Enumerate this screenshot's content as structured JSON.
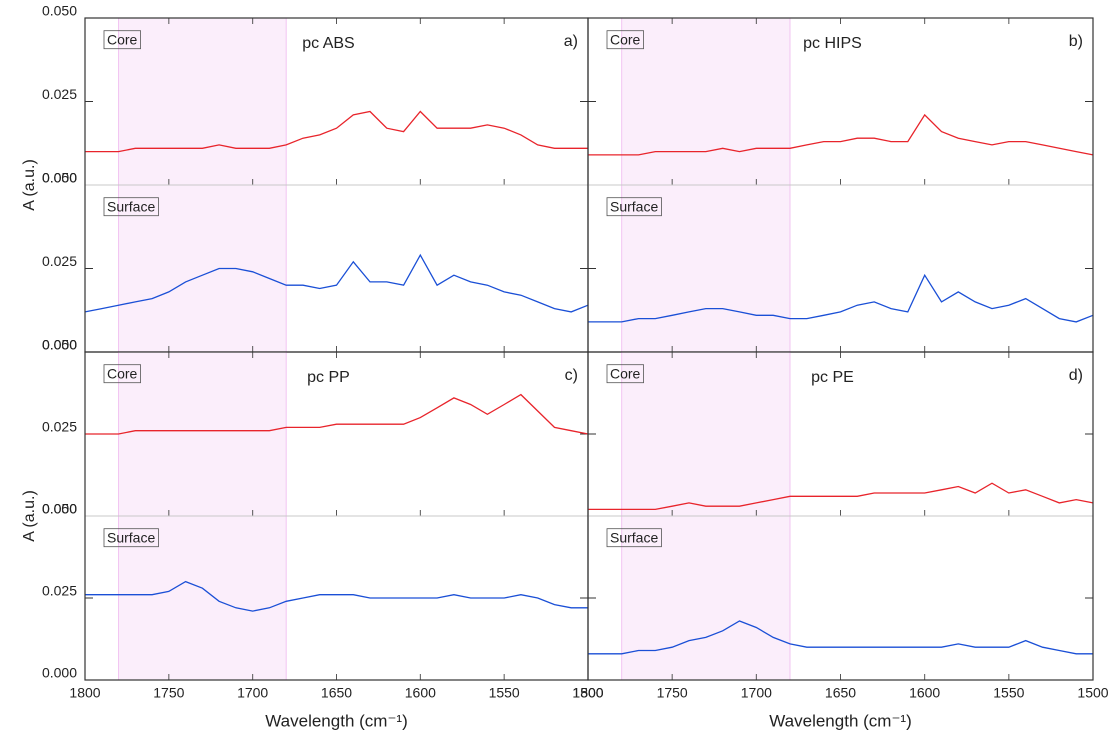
{
  "chart_data": [
    {
      "type": "line",
      "title": "pc ABS",
      "panel_label": "a)",
      "y_label": "A (a.u.)",
      "xlim": [
        1800,
        1500
      ],
      "xticks": [
        1800,
        1750,
        1700,
        1650,
        1600,
        1550,
        1500
      ],
      "ylim": [
        0,
        0.05
      ],
      "yticks": [
        {
          "value": 0,
          "label": "0.000"
        },
        0.025,
        {
          "value": 0.05,
          "label": "0.050"
        }
      ],
      "highlight": [
        1780,
        1680
      ],
      "highlight_color": "#fbeefb",
      "x": [
        1800,
        1790,
        1780,
        1770,
        1760,
        1750,
        1740,
        1730,
        1720,
        1710,
        1700,
        1690,
        1680,
        1670,
        1660,
        1650,
        1640,
        1630,
        1620,
        1610,
        1600,
        1590,
        1580,
        1570,
        1560,
        1550,
        1540,
        1530,
        1520,
        1510,
        1500
      ],
      "series": [
        {
          "name": "Core",
          "color": "#e8242b",
          "values": [
            0.01,
            0.01,
            0.01,
            0.011,
            0.011,
            0.011,
            0.011,
            0.011,
            0.012,
            0.011,
            0.011,
            0.011,
            0.012,
            0.014,
            0.015,
            0.017,
            0.021,
            0.022,
            0.017,
            0.016,
            0.022,
            0.017,
            0.017,
            0.017,
            0.018,
            0.017,
            0.015,
            0.012,
            0.011,
            0.011,
            0.011
          ]
        },
        {
          "name": "Surface",
          "color": "#1a4fd6",
          "values": [
            0.012,
            0.013,
            0.014,
            0.015,
            0.016,
            0.018,
            0.021,
            0.023,
            0.025,
            0.025,
            0.024,
            0.022,
            0.02,
            0.02,
            0.019,
            0.02,
            0.027,
            0.021,
            0.021,
            0.02,
            0.029,
            0.02,
            0.023,
            0.021,
            0.02,
            0.018,
            0.017,
            0.015,
            0.013,
            0.012,
            0.014
          ]
        }
      ]
    },
    {
      "type": "line",
      "title": "pc HIPS",
      "panel_label": "b)",
      "xlim": [
        1800,
        1500
      ],
      "xticks": [
        1800,
        1750,
        1700,
        1650,
        1600,
        1550,
        1500
      ],
      "ylim": [
        0,
        0.05
      ],
      "yticks": [
        {
          "value": 0,
          "label": "0.000"
        },
        0.025,
        {
          "value": 0.05,
          "label": "0.050"
        }
      ],
      "highlight": [
        1780,
        1680
      ],
      "highlight_color": "#fbeefb",
      "x": [
        1800,
        1790,
        1780,
        1770,
        1760,
        1750,
        1740,
        1730,
        1720,
        1710,
        1700,
        1690,
        1680,
        1670,
        1660,
        1650,
        1640,
        1630,
        1620,
        1610,
        1600,
        1590,
        1580,
        1570,
        1560,
        1550,
        1540,
        1530,
        1520,
        1510,
        1500
      ],
      "series": [
        {
          "name": "Core",
          "color": "#e8242b",
          "values": [
            0.009,
            0.009,
            0.009,
            0.009,
            0.01,
            0.01,
            0.01,
            0.01,
            0.011,
            0.01,
            0.011,
            0.011,
            0.011,
            0.012,
            0.013,
            0.013,
            0.014,
            0.014,
            0.013,
            0.013,
            0.021,
            0.016,
            0.014,
            0.013,
            0.012,
            0.013,
            0.013,
            0.012,
            0.011,
            0.01,
            0.009
          ]
        },
        {
          "name": "Surface",
          "color": "#1a4fd6",
          "values": [
            0.009,
            0.009,
            0.009,
            0.01,
            0.01,
            0.011,
            0.012,
            0.013,
            0.013,
            0.012,
            0.011,
            0.011,
            0.01,
            0.01,
            0.011,
            0.012,
            0.014,
            0.015,
            0.013,
            0.012,
            0.023,
            0.015,
            0.018,
            0.015,
            0.013,
            0.014,
            0.016,
            0.013,
            0.01,
            0.009,
            0.011
          ]
        }
      ]
    },
    {
      "type": "line",
      "title": "pc PP",
      "panel_label": "c)",
      "y_label": "A (a.u.)",
      "x_label": "Wavelength (cm⁻¹)",
      "xlim": [
        1800,
        1500
      ],
      "xticks": [
        1800,
        1750,
        1700,
        1650,
        1600,
        1550,
        1500
      ],
      "ylim": [
        0,
        0.05
      ],
      "yticks": [
        {
          "value": 0,
          "label": "0.000"
        },
        0.025,
        {
          "value": 0.05,
          "label": "0.050"
        }
      ],
      "highlight": [
        1780,
        1680
      ],
      "highlight_color": "#fbeefb",
      "x": [
        1800,
        1790,
        1780,
        1770,
        1760,
        1750,
        1740,
        1730,
        1720,
        1710,
        1700,
        1690,
        1680,
        1670,
        1660,
        1650,
        1640,
        1630,
        1620,
        1610,
        1600,
        1590,
        1580,
        1570,
        1560,
        1550,
        1540,
        1530,
        1520,
        1510,
        1500
      ],
      "series": [
        {
          "name": "Core",
          "color": "#e8242b",
          "values": [
            0.025,
            0.025,
            0.025,
            0.026,
            0.026,
            0.026,
            0.026,
            0.026,
            0.026,
            0.026,
            0.026,
            0.026,
            0.027,
            0.027,
            0.027,
            0.028,
            0.028,
            0.028,
            0.028,
            0.028,
            0.03,
            0.033,
            0.036,
            0.034,
            0.031,
            0.034,
            0.037,
            0.032,
            0.027,
            0.026,
            0.025
          ]
        },
        {
          "name": "Surface",
          "color": "#1a4fd6",
          "values": [
            0.026,
            0.026,
            0.026,
            0.026,
            0.026,
            0.027,
            0.03,
            0.028,
            0.024,
            0.022,
            0.021,
            0.022,
            0.024,
            0.025,
            0.026,
            0.026,
            0.026,
            0.025,
            0.025,
            0.025,
            0.025,
            0.025,
            0.026,
            0.025,
            0.025,
            0.025,
            0.026,
            0.025,
            0.023,
            0.022,
            0.022
          ]
        }
      ]
    },
    {
      "type": "line",
      "title": "pc PE",
      "panel_label": "d)",
      "x_label": "Wavelength (cm⁻¹)",
      "xlim": [
        1800,
        1500
      ],
      "xticks": [
        1800,
        1750,
        1700,
        1650,
        1600,
        1550,
        1500
      ],
      "ylim": [
        0,
        0.05
      ],
      "yticks": [
        {
          "value": 0,
          "label": "0.000"
        },
        0.025,
        {
          "value": 0.05,
          "label": "0.050"
        }
      ],
      "highlight": [
        1780,
        1680
      ],
      "highlight_color": "#fbeefb",
      "x": [
        1800,
        1790,
        1780,
        1770,
        1760,
        1750,
        1740,
        1730,
        1720,
        1710,
        1700,
        1690,
        1680,
        1670,
        1660,
        1650,
        1640,
        1630,
        1620,
        1610,
        1600,
        1590,
        1580,
        1570,
        1560,
        1550,
        1540,
        1530,
        1520,
        1510,
        1500
      ],
      "series": [
        {
          "name": "Core",
          "color": "#e8242b",
          "values": [
            0.002,
            0.002,
            0.002,
            0.002,
            0.002,
            0.003,
            0.004,
            0.003,
            0.003,
            0.003,
            0.004,
            0.005,
            0.006,
            0.006,
            0.006,
            0.006,
            0.006,
            0.007,
            0.007,
            0.007,
            0.007,
            0.008,
            0.009,
            0.007,
            0.01,
            0.007,
            0.008,
            0.006,
            0.004,
            0.005,
            0.004
          ]
        },
        {
          "name": "Surface",
          "color": "#1a4fd6",
          "values": [
            0.008,
            0.008,
            0.008,
            0.009,
            0.009,
            0.01,
            0.012,
            0.013,
            0.015,
            0.018,
            0.016,
            0.013,
            0.011,
            0.01,
            0.01,
            0.01,
            0.01,
            0.01,
            0.01,
            0.01,
            0.01,
            0.01,
            0.011,
            0.01,
            0.01,
            0.01,
            0.012,
            0.01,
            0.009,
            0.008,
            0.008
          ]
        }
      ]
    }
  ]
}
